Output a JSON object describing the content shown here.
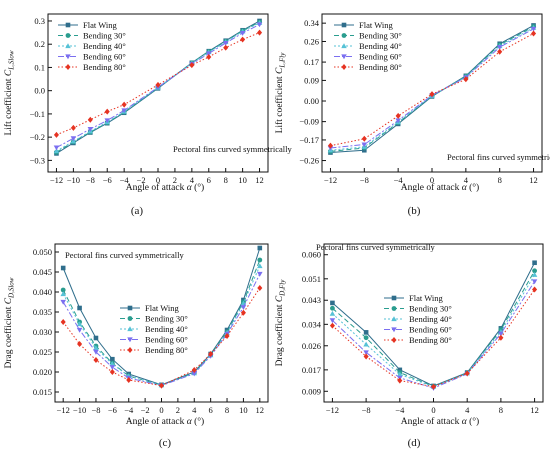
{
  "figure": {
    "panel_labels": [
      "(a)",
      "(b)",
      "(c)",
      "(d)"
    ]
  },
  "chart_data": [
    {
      "panel": "(a)",
      "type": "line",
      "annotation": "Pectoral fins curved symmetrically",
      "xlabel_prefix": "Angle of attack ",
      "xlabel_sym": "α",
      "xlabel_unit": " (°)",
      "ylabel_main": "Lift coefficient ",
      "ylabel_sym": "C",
      "ylabel_sub": "L,Slow",
      "xlim": [
        -13,
        13
      ],
      "ylim": [
        -0.35,
        0.33
      ],
      "x_ticks": [
        -12,
        -10,
        -8,
        -6,
        -4,
        -2,
        0,
        2,
        4,
        6,
        8,
        10,
        12
      ],
      "x_tick_labels": [
        "−12",
        "−10",
        "−8",
        "−6",
        "−4",
        "−2",
        "0",
        "2",
        "4",
        "6",
        "8",
        "10",
        "12"
      ],
      "y_ticks": [
        -0.3,
        -0.2,
        -0.1,
        0.0,
        0.1,
        0.2,
        0.3
      ],
      "y_tick_labels": [
        "−0.3",
        "−0.2",
        "−0.1",
        "0.0",
        "0.1",
        "0.2",
        "0.3"
      ],
      "legend_position": "top-left",
      "series": [
        {
          "name": "Flat Wing",
          "x": [
            -12,
            -10,
            -8,
            -6,
            -4,
            0,
            4,
            6,
            8,
            10,
            12
          ],
          "values": [
            -0.27,
            -0.225,
            -0.18,
            -0.14,
            -0.095,
            0.01,
            0.12,
            0.17,
            0.215,
            0.26,
            0.3
          ]
        },
        {
          "name": "Bending 30°",
          "x": [
            -12,
            -10,
            -8,
            -6,
            -4,
            0,
            4,
            6,
            8,
            10,
            12
          ],
          "values": [
            -0.265,
            -0.22,
            -0.178,
            -0.138,
            -0.092,
            0.012,
            0.12,
            0.168,
            0.212,
            0.258,
            0.295
          ]
        },
        {
          "name": "Bending 40°",
          "x": [
            -12,
            -10,
            -8,
            -6,
            -4,
            0,
            4,
            6,
            8,
            10,
            12
          ],
          "values": [
            -0.26,
            -0.218,
            -0.175,
            -0.135,
            -0.09,
            0.013,
            0.118,
            0.166,
            0.21,
            0.255,
            0.292
          ]
        },
        {
          "name": "Bending 60°",
          "x": [
            -12,
            -10,
            -8,
            -6,
            -4,
            0,
            4,
            6,
            8,
            10,
            12
          ],
          "values": [
            -0.245,
            -0.205,
            -0.165,
            -0.128,
            -0.085,
            0.015,
            0.115,
            0.16,
            0.205,
            0.248,
            0.285
          ]
        },
        {
          "name": "Bending 80°",
          "x": [
            -12,
            -10,
            -8,
            -6,
            -4,
            0,
            4,
            6,
            8,
            10,
            12
          ],
          "values": [
            -0.19,
            -0.16,
            -0.125,
            -0.09,
            -0.06,
            0.025,
            0.11,
            0.145,
            0.185,
            0.22,
            0.25
          ]
        }
      ]
    },
    {
      "panel": "(b)",
      "type": "line",
      "annotation": "Pectoral fins curved symmetrically",
      "xlabel_prefix": "Angle of attack ",
      "xlabel_sym": "α",
      "xlabel_unit": " (°)",
      "ylabel_main": "Lift coefficient ",
      "ylabel_sym": "C",
      "ylabel_sub": "L,Fly",
      "xlim": [
        -13,
        13
      ],
      "ylim": [
        -0.31,
        0.38
      ],
      "x_ticks": [
        -12,
        -8,
        -4,
        0,
        4,
        8,
        12
      ],
      "x_tick_labels": [
        "−12",
        "−8",
        "−4",
        "0",
        "4",
        "8",
        "12"
      ],
      "y_ticks": [
        -0.26,
        -0.17,
        -0.09,
        0.0,
        0.09,
        0.17,
        0.26,
        0.34
      ],
      "y_tick_labels": [
        "−0.26",
        "−0.17",
        "−0.09",
        "0.00",
        "0.09",
        "0.17",
        "0.26",
        "0.34"
      ],
      "legend_position": "top-left",
      "series": [
        {
          "name": "Flat Wing",
          "x": [
            -12,
            -8,
            -4,
            0,
            4,
            8,
            12
          ],
          "values": [
            -0.225,
            -0.215,
            -0.1,
            0.02,
            0.11,
            0.25,
            0.33
          ]
        },
        {
          "name": "Bending 30°",
          "x": [
            -12,
            -8,
            -4,
            0,
            4,
            8,
            12
          ],
          "values": [
            -0.22,
            -0.205,
            -0.095,
            0.022,
            0.108,
            0.245,
            0.325
          ]
        },
        {
          "name": "Bending 40°",
          "x": [
            -12,
            -8,
            -4,
            0,
            4,
            8,
            12
          ],
          "values": [
            -0.215,
            -0.2,
            -0.092,
            0.023,
            0.105,
            0.24,
            0.32
          ]
        },
        {
          "name": "Bending 60°",
          "x": [
            -12,
            -8,
            -4,
            0,
            4,
            8,
            12
          ],
          "values": [
            -0.205,
            -0.19,
            -0.085,
            0.025,
            0.103,
            0.235,
            0.315
          ]
        },
        {
          "name": "Bending 80°",
          "x": [
            -12,
            -8,
            -4,
            0,
            4,
            8,
            12
          ],
          "values": [
            -0.195,
            -0.165,
            -0.065,
            0.03,
            0.095,
            0.215,
            0.295
          ]
        }
      ]
    },
    {
      "panel": "(c)",
      "type": "line",
      "annotation": "Pectoral fins curved symmetrically",
      "xlabel_prefix": "Angle of attack ",
      "xlabel_sym": "α",
      "xlabel_unit": " (°)",
      "ylabel_main": "Drag coefficient ",
      "ylabel_sym": "C",
      "ylabel_sub": "D,Slow",
      "xlim": [
        -13,
        13
      ],
      "ylim": [
        0.0125,
        0.052
      ],
      "x_ticks": [
        -12,
        -10,
        -8,
        -6,
        -4,
        -2,
        0,
        2,
        4,
        6,
        8,
        10,
        12
      ],
      "x_tick_labels": [
        "−12",
        "−10",
        "−8",
        "−6",
        "−4",
        "−2",
        "0",
        "2",
        "4",
        "6",
        "8",
        "10",
        "12"
      ],
      "y_ticks": [
        0.015,
        0.02,
        0.025,
        0.03,
        0.035,
        0.04,
        0.045,
        0.05
      ],
      "y_tick_labels": [
        "0.015",
        "0.020",
        "0.025",
        "0.030",
        "0.035",
        "0.040",
        "0.045",
        "0.050"
      ],
      "legend_position": "center-left",
      "series": [
        {
          "name": "Flat Wing",
          "x": [
            -12,
            -10,
            -8,
            -6,
            -4,
            0,
            4,
            6,
            8,
            10,
            12
          ],
          "values": [
            0.046,
            0.036,
            0.0285,
            0.0232,
            0.0195,
            0.0168,
            0.02,
            0.0245,
            0.0305,
            0.038,
            0.051
          ]
        },
        {
          "name": "Bending 30°",
          "x": [
            -12,
            -10,
            -8,
            -6,
            -4,
            0,
            4,
            6,
            8,
            10,
            12
          ],
          "values": [
            0.0405,
            0.0325,
            0.0265,
            0.0222,
            0.019,
            0.0167,
            0.0198,
            0.0243,
            0.03,
            0.0375,
            0.048
          ]
        },
        {
          "name": "Bending 40°",
          "x": [
            -12,
            -10,
            -8,
            -6,
            -4,
            0,
            4,
            6,
            8,
            10,
            12
          ],
          "values": [
            0.0395,
            0.032,
            0.026,
            0.022,
            0.019,
            0.0167,
            0.0197,
            0.0242,
            0.0298,
            0.0372,
            0.0465
          ]
        },
        {
          "name": "Bending 60°",
          "x": [
            -12,
            -10,
            -8,
            -6,
            -4,
            0,
            4,
            6,
            8,
            10,
            12
          ],
          "values": [
            0.0375,
            0.0305,
            0.025,
            0.0212,
            0.0185,
            0.0166,
            0.0196,
            0.024,
            0.0295,
            0.0362,
            0.0445
          ]
        },
        {
          "name": "Bending 80°",
          "x": [
            -12,
            -10,
            -8,
            -6,
            -4,
            0,
            4,
            6,
            8,
            10,
            12
          ],
          "values": [
            0.0325,
            0.027,
            0.023,
            0.02,
            0.018,
            0.0166,
            0.0205,
            0.0245,
            0.029,
            0.0348,
            0.041
          ]
        }
      ]
    },
    {
      "panel": "(d)",
      "type": "line",
      "annotation": "Pectoral fins curved symmetrically",
      "xlabel_prefix": "Angle of attack ",
      "xlabel_sym": "α",
      "xlabel_unit": " (°)",
      "ylabel_main": "Drag coefficient ",
      "ylabel_sym": "C",
      "ylabel_sub": "D,Fly",
      "xlim": [
        -13,
        13
      ],
      "ylim": [
        0.005,
        0.064
      ],
      "x_ticks": [
        -12,
        -8,
        -4,
        0,
        4,
        8,
        12
      ],
      "x_tick_labels": [
        "−12",
        "−8",
        "−4",
        "0",
        "4",
        "8",
        "12"
      ],
      "y_ticks": [
        0.009,
        0.017,
        0.026,
        0.034,
        0.043,
        0.051,
        0.06
      ],
      "y_tick_labels": [
        "0.009",
        "0.017",
        "0.026",
        "0.034",
        "0.043",
        "0.051",
        "0.060"
      ],
      "legend_position": "center-left",
      "series": [
        {
          "name": "Flat Wing",
          "x": [
            -12,
            -8,
            -4,
            0,
            4,
            8,
            12
          ],
          "values": [
            0.042,
            0.031,
            0.017,
            0.011,
            0.016,
            0.0325,
            0.057
          ]
        },
        {
          "name": "Bending 30°",
          "x": [
            -12,
            -8,
            -4,
            0,
            4,
            8,
            12
          ],
          "values": [
            0.04,
            0.029,
            0.016,
            0.0108,
            0.0158,
            0.032,
            0.054
          ]
        },
        {
          "name": "Bending 40°",
          "x": [
            -12,
            -8,
            -4,
            0,
            4,
            8,
            12
          ],
          "values": [
            0.038,
            0.0265,
            0.0153,
            0.0107,
            0.0157,
            0.0312,
            0.0525
          ]
        },
        {
          "name": "Bending 60°",
          "x": [
            -12,
            -8,
            -4,
            0,
            4,
            8,
            12
          ],
          "values": [
            0.0355,
            0.0235,
            0.014,
            0.0102,
            0.0155,
            0.0305,
            0.05
          ]
        },
        {
          "name": "Bending 80°",
          "x": [
            -12,
            -8,
            -4,
            0,
            4,
            8,
            12
          ],
          "values": [
            0.0335,
            0.022,
            0.013,
            0.0107,
            0.0157,
            0.029,
            0.047
          ]
        }
      ]
    }
  ],
  "series_styles": [
    {
      "color": "#2f6e8c",
      "marker": "square",
      "dash": ""
    },
    {
      "color": "#2a9d8f",
      "marker": "circle",
      "dash": "5,3"
    },
    {
      "color": "#56c2d6",
      "marker": "triangle-up",
      "dash": "2,2"
    },
    {
      "color": "#7b6ff0",
      "marker": "triangle-down",
      "dash": "6,2,2,2"
    },
    {
      "color": "#e63322",
      "marker": "diamond",
      "dash": "1.5,2"
    }
  ]
}
